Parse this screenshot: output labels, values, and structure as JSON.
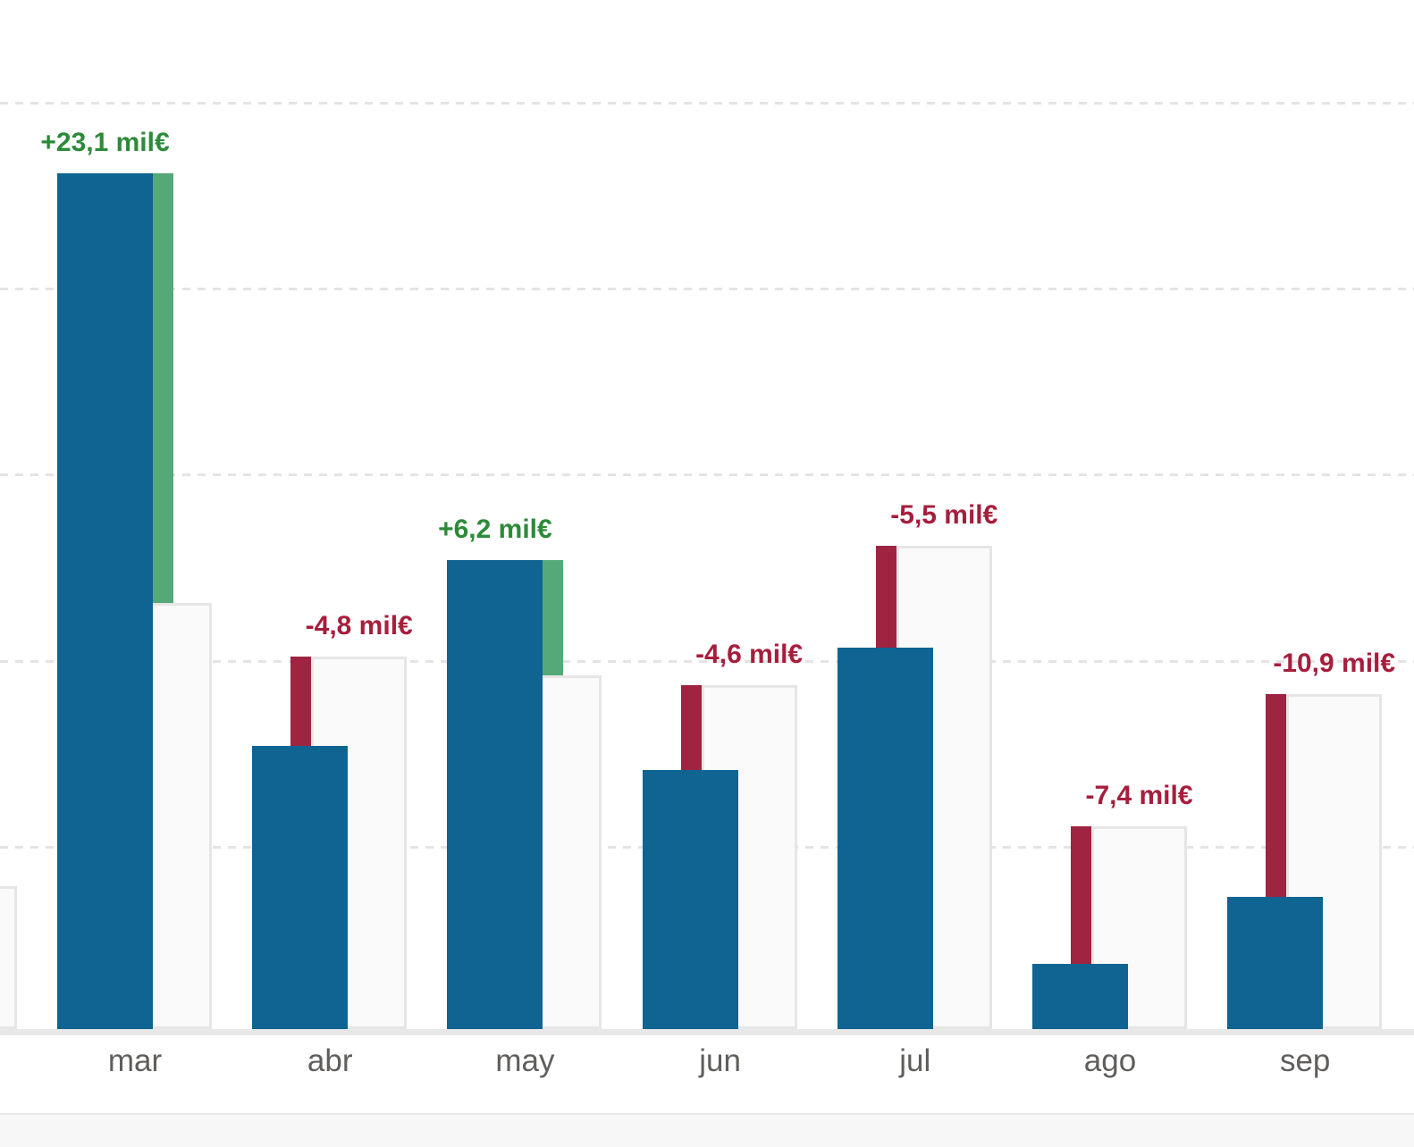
{
  "chart_data": {
    "type": "bar",
    "subtype": "actual-vs-reference-variance",
    "title": "",
    "unit": "mil€",
    "categories": [
      "mar",
      "abr",
      "may",
      "jun",
      "jul",
      "ago",
      "sep"
    ],
    "series": [
      {
        "name": "actual",
        "values": [
          46.2,
          15.4,
          25.4,
          14.1,
          20.7,
          3.7,
          7.3
        ]
      },
      {
        "name": "reference",
        "values": [
          23.1,
          20.2,
          19.2,
          18.7,
          26.2,
          11.1,
          18.2
        ]
      }
    ],
    "variances": [
      {
        "category": "mar",
        "value": 23.1,
        "label": "+23,1 mil€",
        "direction": "positive"
      },
      {
        "category": "abr",
        "value": -4.8,
        "label": "-4,8 mil€",
        "direction": "negative"
      },
      {
        "category": "may",
        "value": 6.2,
        "label": "+6,2 mil€",
        "direction": "positive"
      },
      {
        "category": "jun",
        "value": -4.6,
        "label": "-4,6 mil€",
        "direction": "negative"
      },
      {
        "category": "jul",
        "value": -5.5,
        "label": "-5,5 mil€",
        "direction": "negative"
      },
      {
        "category": "ago",
        "value": -7.4,
        "label": "-7,4 mil€",
        "direction": "negative"
      },
      {
        "category": "sep",
        "value": -10.9,
        "label": "-10,9 mil€",
        "direction": "negative"
      }
    ],
    "partial_prev_month": {
      "reference_value": 7.9
    },
    "ylim": [
      0,
      55
    ],
    "gridline_step": 10,
    "grid": true,
    "legend": false,
    "xlabel": "",
    "ylabel": ""
  },
  "colors": {
    "actual_bar": "#0f6491",
    "reference_bar_fill": "#fafafa",
    "reference_bar_border": "#e6e6e6",
    "favorable_bar": "#55a878",
    "favorable_text": "#2d8a39",
    "unfavorable_bar": "#9f2441",
    "unfavorable_text": "#a61e3c",
    "gridline": "#e4e4e4",
    "axis_line": "#e8e8e8",
    "month_label": "#605e5c",
    "bottom_panel": "#f7f7f7",
    "background": "#ffffff"
  }
}
